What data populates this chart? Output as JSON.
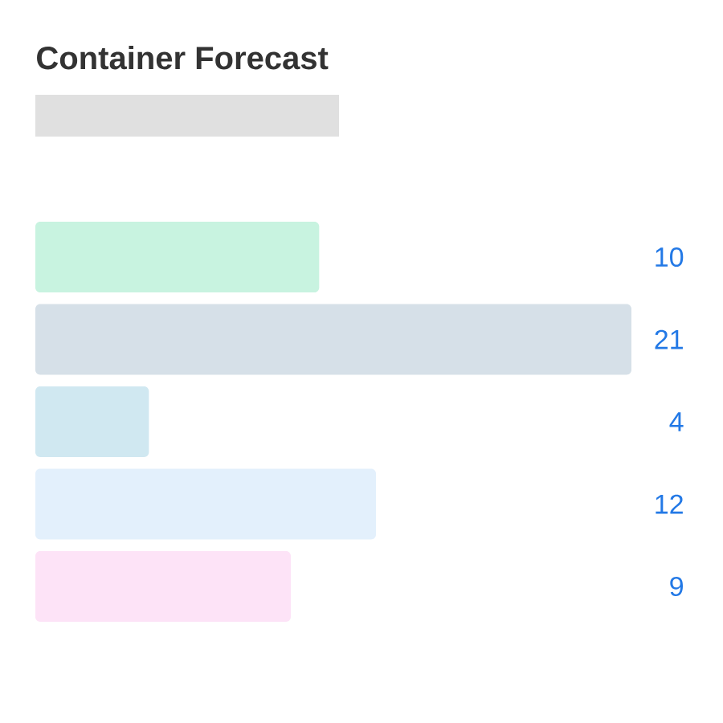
{
  "chart_data": {
    "type": "bar",
    "orientation": "horizontal",
    "title": "Container Forecast",
    "categories": [
      null,
      null,
      null,
      null,
      null
    ],
    "values": [
      10,
      21,
      4,
      12,
      9
    ],
    "colors": [
      "#c8f3e0",
      "#d6e0e8",
      "#d0e8f1",
      "#e3f0fc",
      "#fde3f7"
    ],
    "data_labels": true
  }
}
